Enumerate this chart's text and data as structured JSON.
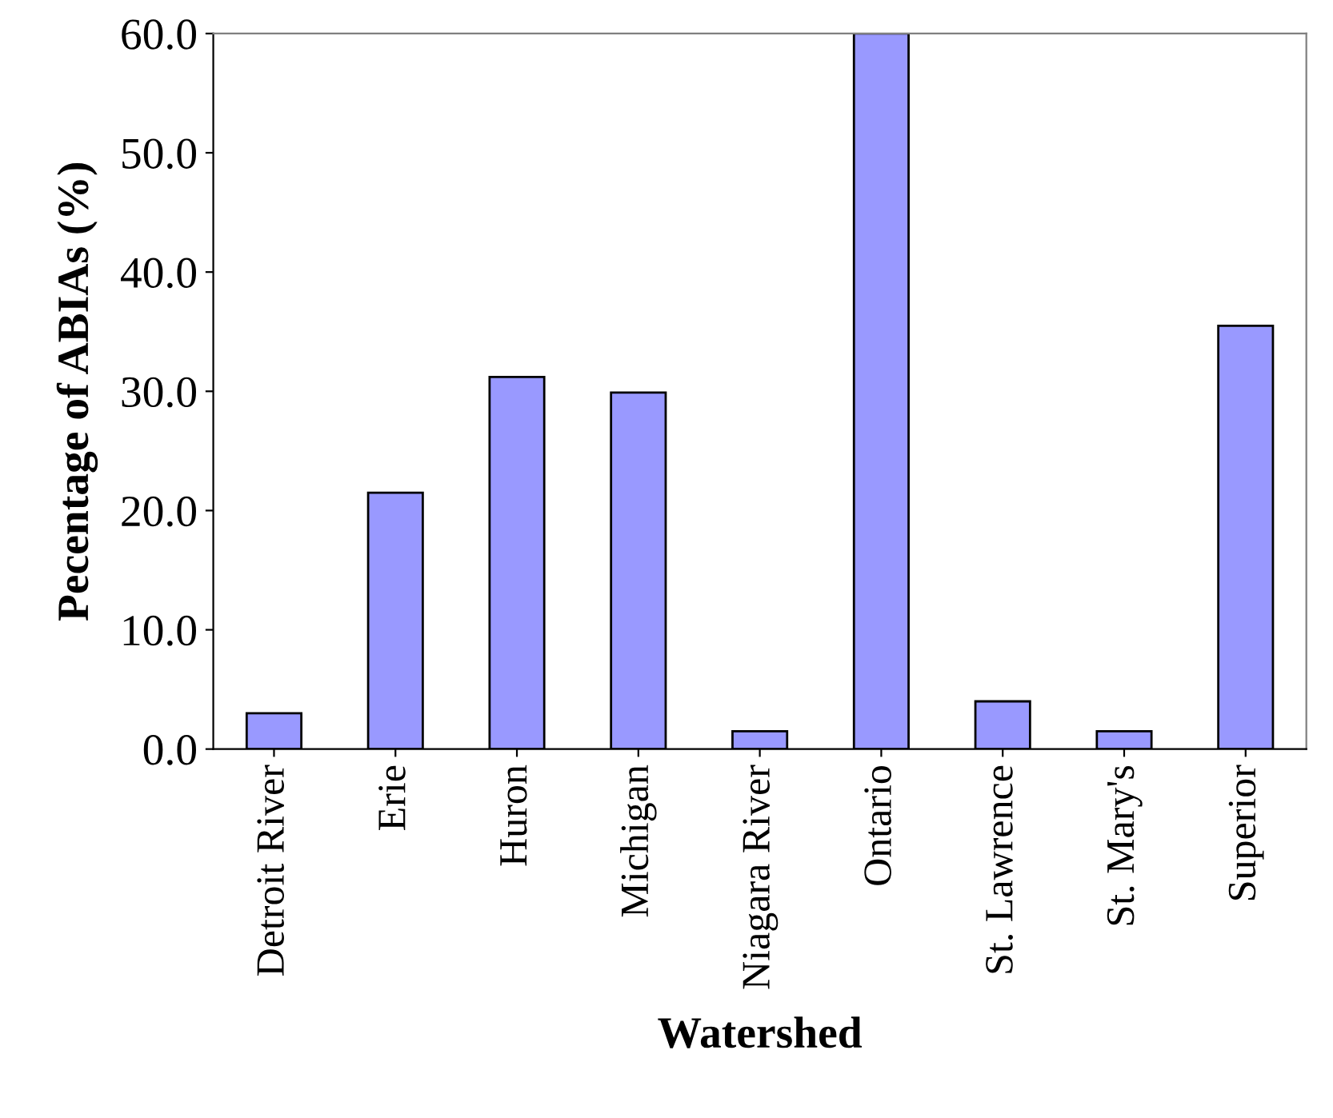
{
  "chart_data": {
    "type": "bar",
    "xlabel": "Watershed",
    "ylabel": "Pecentage of ABIAs (%)",
    "categories": [
      "Detroit River",
      "Erie",
      "Huron",
      "Michigan",
      "Niagara River",
      "Ontario",
      "St. Lawrence",
      "St. Mary's",
      "Superior"
    ],
    "values": [
      3.0,
      21.5,
      31.2,
      29.9,
      1.5,
      60.0,
      4.0,
      1.5,
      35.5
    ],
    "color": "#9999ff",
    "ylim": [
      0,
      60
    ],
    "yticks": [
      {
        "value": 0,
        "label": "0.0"
      },
      {
        "value": 10,
        "label": "10.0"
      },
      {
        "value": 20,
        "label": "20.0"
      },
      {
        "value": 30,
        "label": "30.0"
      },
      {
        "value": 40,
        "label": "40.0"
      },
      {
        "value": 50,
        "label": "50.0"
      },
      {
        "value": 60,
        "label": "60.0"
      }
    ],
    "grid": false,
    "legend": false
  }
}
